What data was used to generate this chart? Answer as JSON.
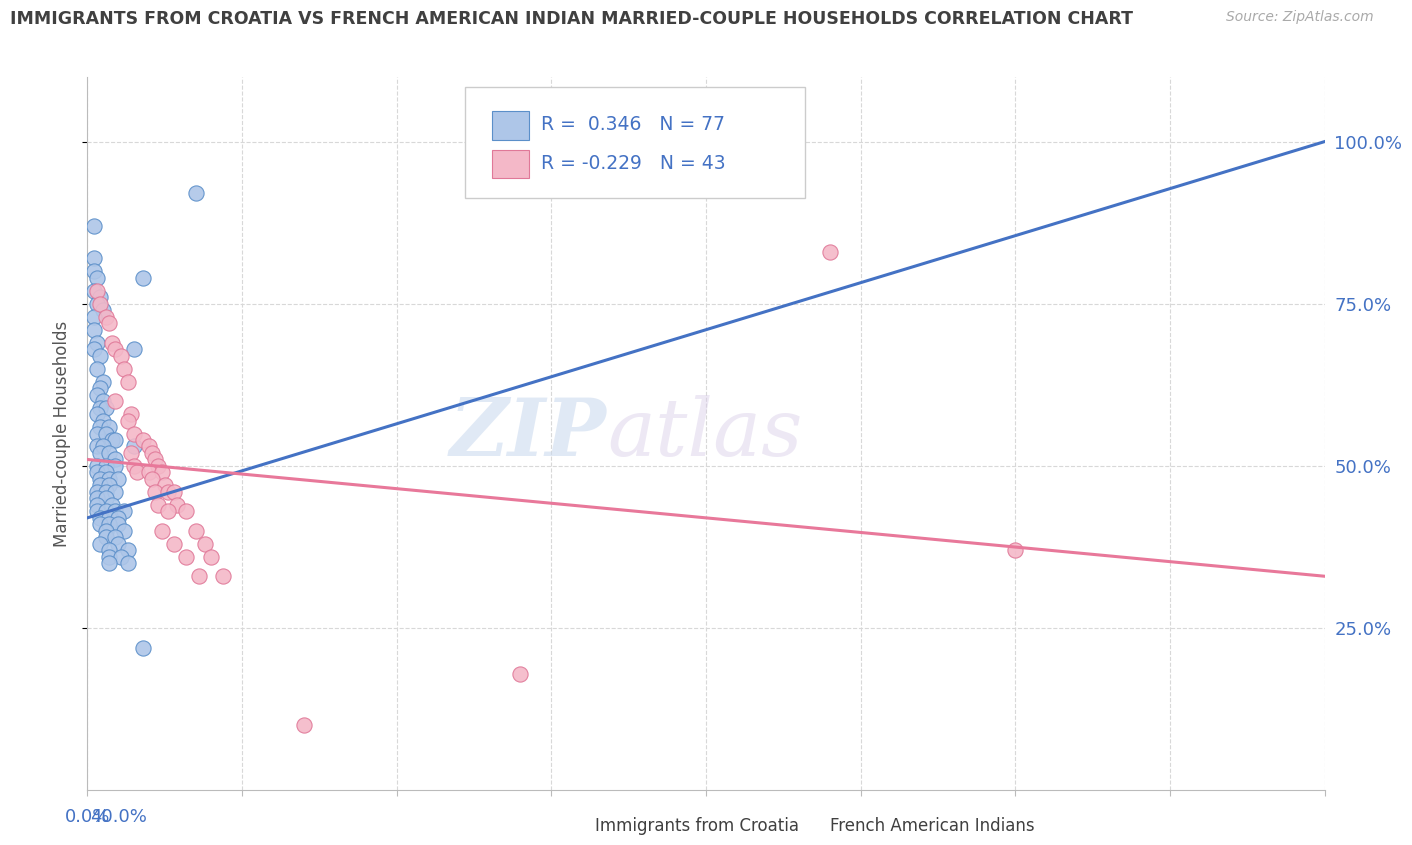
{
  "title": "IMMIGRANTS FROM CROATIA VS FRENCH AMERICAN INDIAN MARRIED-COUPLE HOUSEHOLDS CORRELATION CHART",
  "source": "Source: ZipAtlas.com",
  "ylabel": "Married-couple Households",
  "legend_label_blue": "Immigrants from Croatia",
  "legend_label_pink": "French American Indians",
  "watermark_zip": "ZIP",
  "watermark_atlas": "atlas",
  "blue_color": "#aec6e8",
  "blue_edge": "#5b8fc9",
  "pink_color": "#f4b8c8",
  "pink_edge": "#e07898",
  "line_blue_color": "#4472c4",
  "line_pink_color": "#e8789a",
  "axis_label_color": "#4472c4",
  "title_color": "#404040",
  "source_color": "#aaaaaa",
  "grid_color": "#d8d8d8",
  "blue_scatter": [
    [
      0.2,
      87
    ],
    [
      0.2,
      82
    ],
    [
      0.2,
      80
    ],
    [
      0.3,
      79
    ],
    [
      0.2,
      77
    ],
    [
      0.4,
      76
    ],
    [
      0.3,
      75
    ],
    [
      0.5,
      74
    ],
    [
      0.2,
      73
    ],
    [
      0.2,
      71
    ],
    [
      0.3,
      69
    ],
    [
      0.2,
      68
    ],
    [
      0.4,
      67
    ],
    [
      0.3,
      65
    ],
    [
      0.5,
      63
    ],
    [
      0.4,
      62
    ],
    [
      0.3,
      61
    ],
    [
      0.5,
      60
    ],
    [
      0.4,
      59
    ],
    [
      0.6,
      59
    ],
    [
      0.3,
      58
    ],
    [
      0.5,
      57
    ],
    [
      0.4,
      56
    ],
    [
      0.7,
      56
    ],
    [
      0.3,
      55
    ],
    [
      0.6,
      55
    ],
    [
      0.8,
      54
    ],
    [
      0.9,
      54
    ],
    [
      0.3,
      53
    ],
    [
      0.5,
      53
    ],
    [
      0.4,
      52
    ],
    [
      0.7,
      52
    ],
    [
      0.9,
      51
    ],
    [
      0.3,
      50
    ],
    [
      0.6,
      50
    ],
    [
      0.9,
      50
    ],
    [
      0.3,
      49
    ],
    [
      0.6,
      49
    ],
    [
      0.4,
      48
    ],
    [
      0.7,
      48
    ],
    [
      1.0,
      48
    ],
    [
      0.4,
      47
    ],
    [
      0.7,
      47
    ],
    [
      0.3,
      46
    ],
    [
      0.6,
      46
    ],
    [
      0.9,
      46
    ],
    [
      0.3,
      45
    ],
    [
      0.6,
      45
    ],
    [
      0.3,
      44
    ],
    [
      0.8,
      44
    ],
    [
      0.3,
      43
    ],
    [
      0.6,
      43
    ],
    [
      0.9,
      43
    ],
    [
      1.2,
      43
    ],
    [
      0.4,
      42
    ],
    [
      0.7,
      42
    ],
    [
      1.0,
      42
    ],
    [
      0.4,
      41
    ],
    [
      0.7,
      41
    ],
    [
      1.0,
      41
    ],
    [
      0.6,
      40
    ],
    [
      1.2,
      40
    ],
    [
      0.6,
      39
    ],
    [
      0.9,
      39
    ],
    [
      0.4,
      38
    ],
    [
      1.0,
      38
    ],
    [
      0.7,
      37
    ],
    [
      1.3,
      37
    ],
    [
      0.7,
      36
    ],
    [
      1.1,
      36
    ],
    [
      0.7,
      35
    ],
    [
      1.3,
      35
    ],
    [
      1.5,
      68
    ],
    [
      1.5,
      53
    ],
    [
      1.8,
      22
    ],
    [
      3.5,
      92
    ],
    [
      1.8,
      79
    ]
  ],
  "pink_scatter": [
    [
      0.3,
      77
    ],
    [
      0.4,
      75
    ],
    [
      0.6,
      73
    ],
    [
      0.7,
      72
    ],
    [
      0.8,
      69
    ],
    [
      0.9,
      68
    ],
    [
      1.1,
      67
    ],
    [
      1.2,
      65
    ],
    [
      1.3,
      63
    ],
    [
      0.9,
      60
    ],
    [
      1.4,
      58
    ],
    [
      1.3,
      57
    ],
    [
      1.5,
      55
    ],
    [
      1.8,
      54
    ],
    [
      2.0,
      53
    ],
    [
      1.4,
      52
    ],
    [
      2.1,
      52
    ],
    [
      2.2,
      51
    ],
    [
      1.5,
      50
    ],
    [
      2.3,
      50
    ],
    [
      1.6,
      49
    ],
    [
      2.0,
      49
    ],
    [
      2.4,
      49
    ],
    [
      2.1,
      48
    ],
    [
      2.5,
      47
    ],
    [
      2.2,
      46
    ],
    [
      2.6,
      46
    ],
    [
      2.8,
      46
    ],
    [
      2.3,
      44
    ],
    [
      2.9,
      44
    ],
    [
      2.6,
      43
    ],
    [
      3.2,
      43
    ],
    [
      2.4,
      40
    ],
    [
      3.5,
      40
    ],
    [
      2.8,
      38
    ],
    [
      3.8,
      38
    ],
    [
      3.2,
      36
    ],
    [
      4.0,
      36
    ],
    [
      3.6,
      33
    ],
    [
      4.4,
      33
    ],
    [
      24.0,
      83
    ],
    [
      30.0,
      37
    ],
    [
      14.0,
      18
    ],
    [
      7.0,
      10
    ]
  ],
  "blue_line": [
    [
      0,
      40
    ],
    [
      42,
      100
    ]
  ],
  "pink_line": [
    [
      0,
      51
    ],
    [
      40,
      33
    ]
  ],
  "xlim": [
    0,
    40
  ],
  "ylim": [
    0,
    110
  ],
  "yticks": [
    25,
    50,
    75,
    100
  ],
  "ytick_labels": [
    "25.0%",
    "50.0%",
    "75.0%",
    "100.0%"
  ],
  "xticks": [
    0,
    5,
    10,
    15,
    20,
    25,
    30,
    35,
    40
  ],
  "xtick_labels": [
    "0.0%",
    "",
    "",
    "",
    "",
    "",
    "",
    "",
    "40.0%"
  ]
}
